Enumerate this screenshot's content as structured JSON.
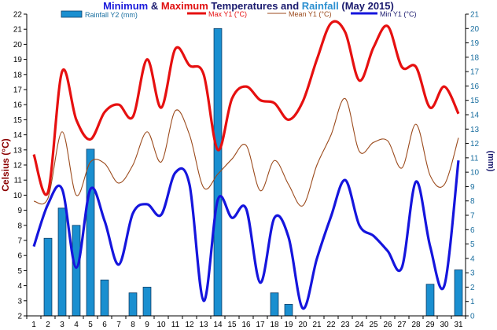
{
  "chart_data": {
    "type": "bar+line",
    "title_parts": [
      {
        "text": "Minimum",
        "color": "#1a1adb"
      },
      {
        "text": " & ",
        "color": "#1a1a6e"
      },
      {
        "text": "Maximum",
        "color": "#e01010"
      },
      {
        "text": " Temperatures and ",
        "color": "#1a1a6e"
      },
      {
        "text": "Rainfall",
        "color": "#2a8fd0"
      },
      {
        "text": " (May 2015)",
        "color": "#1a1a6e"
      }
    ],
    "ylabel_left": "Celsius (°C)",
    "ylabel_right": "(mm)",
    "y_left_range": [
      2,
      22
    ],
    "y_right_range": [
      0,
      21
    ],
    "x": [
      1,
      2,
      3,
      4,
      5,
      6,
      7,
      8,
      9,
      10,
      11,
      12,
      13,
      14,
      15,
      16,
      17,
      18,
      19,
      20,
      21,
      22,
      23,
      24,
      25,
      26,
      27,
      28,
      29,
      30,
      31
    ],
    "legend": {
      "rainfall": "Rainfall Y2 (mm)",
      "max": "Max Y1 (°C)",
      "mean": "Mean Y1 (°C)",
      "min": "Min Y1 (°C)"
    },
    "colors": {
      "rainfall_fill": "#1a8fd0",
      "rainfall_edge": "#0b3c66",
      "max": "#e61010",
      "mean": "#9b4a1c",
      "min": "#1515dd",
      "axis": "#000000",
      "right_axis_labels": "#1a6fa0",
      "left_label": "#8b0000"
    },
    "rainfall": [
      0,
      5.4,
      7.5,
      6.3,
      11.6,
      2.5,
      0,
      1.6,
      2.0,
      0,
      0,
      0,
      0,
      20.0,
      0,
      0,
      0,
      1.6,
      0.8,
      0,
      0,
      0,
      0,
      0,
      0,
      0,
      0,
      0,
      2.2,
      0,
      3.2
    ],
    "max": [
      12.7,
      10.2,
      18.2,
      15.0,
      13.7,
      15.5,
      16.0,
      15.2,
      19.0,
      15.8,
      19.7,
      18.6,
      18.0,
      13.0,
      16.4,
      17.2,
      16.3,
      16.1,
      15.0,
      16.2,
      19.0,
      21.4,
      20.8,
      17.6,
      19.8,
      21.2,
      18.5,
      18.5,
      15.8,
      17.2,
      15.4
    ],
    "mean": [
      9.6,
      9.8,
      14.2,
      10.0,
      12.2,
      12.1,
      10.8,
      12.0,
      14.2,
      12.2,
      15.6,
      14.0,
      10.5,
      11.4,
      12.4,
      13.3,
      10.3,
      12.3,
      10.7,
      9.3,
      12.0,
      14.0,
      16.4,
      12.9,
      13.5,
      13.6,
      11.8,
      14.7,
      11.3,
      10.7,
      13.8
    ],
    "min": [
      6.6,
      9.4,
      10.4,
      5.2,
      10.4,
      8.3,
      5.4,
      8.8,
      9.4,
      8.7,
      11.5,
      10.7,
      3.0,
      9.7,
      8.5,
      9.1,
      4.2,
      8.5,
      7.2,
      2.5,
      5.8,
      8.6,
      11.0,
      8.0,
      7.3,
      6.3,
      5.2,
      10.9,
      6.6,
      4.0,
      12.3
    ]
  }
}
